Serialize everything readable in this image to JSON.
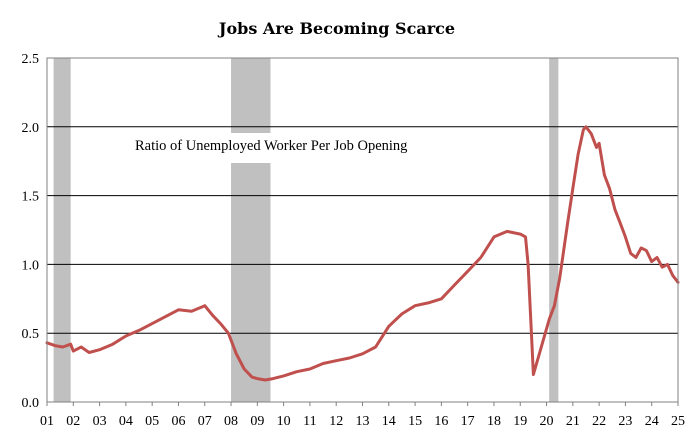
{
  "chart_data": {
    "type": "line",
    "title": "Jobs Are Becoming Scarce",
    "annotation": "Ratio of Unemployed Worker Per Job Opening",
    "xlabel": "",
    "ylabel": "",
    "xlim": [
      2001.0,
      2025.0
    ],
    "ylim": [
      0.0,
      2.5
    ],
    "grid": true,
    "y_ticks": [
      "0.0",
      "0.5",
      "1.0",
      "1.5",
      "2.0",
      "2.5"
    ],
    "x_tick_labels": [
      "01",
      "02",
      "03",
      "04",
      "05",
      "06",
      "07",
      "08",
      "09",
      "10",
      "11",
      "12",
      "13",
      "14",
      "15",
      "16",
      "17",
      "18",
      "19",
      "20",
      "21",
      "22",
      "23",
      "24",
      "25"
    ],
    "recessions": [
      {
        "start": 2001.25,
        "end": 2001.9
      },
      {
        "start": 2008.0,
        "end": 2009.5
      },
      {
        "start": 2020.1,
        "end": 2020.45
      }
    ],
    "series": [
      {
        "name": "Ratio of Unemployed Worker Per Job Opening",
        "color": "#c0504d",
        "x": [
          2001.0,
          2001.3,
          2001.6,
          2001.9,
          2002.0,
          2002.3,
          2002.6,
          2003.0,
          2003.5,
          2004.0,
          2004.5,
          2005.0,
          2005.5,
          2006.0,
          2006.5,
          2007.0,
          2007.3,
          2007.6,
          2007.9,
          2008.2,
          2008.5,
          2008.8,
          2009.0,
          2009.3,
          2009.6,
          2010.0,
          2010.5,
          2011.0,
          2011.5,
          2012.0,
          2012.5,
          2013.0,
          2013.5,
          2014.0,
          2014.5,
          2015.0,
          2015.5,
          2016.0,
          2016.5,
          2017.0,
          2017.5,
          2018.0,
          2018.5,
          2019.0,
          2019.2,
          2019.3,
          2019.5,
          2019.8,
          2020.1,
          2020.3,
          2020.5,
          2020.8,
          2021.0,
          2021.2,
          2021.4,
          2021.5,
          2021.7,
          2021.9,
          2022.0,
          2022.2,
          2022.4,
          2022.6,
          2022.8,
          2023.0,
          2023.2,
          2023.4,
          2023.6,
          2023.8,
          2024.0,
          2024.2,
          2024.4,
          2024.6,
          2024.8,
          2025.0
        ],
        "values": [
          0.43,
          0.41,
          0.4,
          0.42,
          0.37,
          0.4,
          0.36,
          0.38,
          0.42,
          0.48,
          0.52,
          0.57,
          0.62,
          0.67,
          0.66,
          0.7,
          0.63,
          0.57,
          0.5,
          0.35,
          0.24,
          0.18,
          0.17,
          0.16,
          0.17,
          0.19,
          0.22,
          0.24,
          0.28,
          0.3,
          0.32,
          0.35,
          0.4,
          0.55,
          0.64,
          0.7,
          0.72,
          0.75,
          0.85,
          0.95,
          1.05,
          1.2,
          1.24,
          1.22,
          1.2,
          1.0,
          0.2,
          0.4,
          0.6,
          0.7,
          0.9,
          1.3,
          1.55,
          1.8,
          1.98,
          2.0,
          1.95,
          1.85,
          1.88,
          1.65,
          1.55,
          1.4,
          1.3,
          1.2,
          1.08,
          1.05,
          1.12,
          1.1,
          1.02,
          1.05,
          0.98,
          1.0,
          0.92,
          0.87
        ]
      }
    ],
    "colors": {
      "line": "#c0504d",
      "recession": "#c0c0c0",
      "grid": "#000000",
      "frame": "#808080"
    }
  }
}
